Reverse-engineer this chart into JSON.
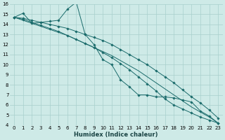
{
  "title": "",
  "xlabel": "Humidex (Indice chaleur)",
  "ylabel": "",
  "bg_color": "#ceeae7",
  "grid_color": "#a8d0cc",
  "line_color": "#1a6b6b",
  "x_data": [
    0,
    1,
    2,
    3,
    4,
    5,
    6,
    7,
    8,
    9,
    10,
    11,
    12,
    13,
    14,
    15,
    16,
    17,
    18,
    19,
    20,
    21,
    22,
    23
  ],
  "y_main": [
    14.7,
    15.1,
    14.1,
    14.2,
    14.3,
    14.4,
    15.5,
    16.2,
    13.0,
    12.0,
    10.5,
    10.0,
    8.5,
    7.8,
    7.0,
    7.0,
    6.8,
    6.8,
    6.7,
    6.5,
    6.3,
    5.4,
    4.9,
    4.2
  ],
  "y_upper": [
    14.7,
    14.6,
    14.4,
    14.2,
    14.0,
    13.8,
    13.6,
    13.3,
    13.0,
    12.7,
    12.4,
    12.0,
    11.5,
    11.0,
    10.5,
    10.0,
    9.4,
    8.8,
    8.2,
    7.5,
    6.8,
    6.2,
    5.5,
    4.7
  ],
  "y_lower": [
    14.7,
    14.5,
    14.2,
    13.9,
    13.6,
    13.3,
    12.9,
    12.5,
    12.1,
    11.7,
    11.2,
    10.7,
    10.1,
    9.5,
    8.8,
    8.1,
    7.4,
    6.6,
    6.0,
    5.6,
    5.2,
    4.8,
    4.5,
    4.2
  ],
  "y_trend": [
    14.7,
    14.4,
    14.1,
    13.8,
    13.5,
    13.2,
    12.9,
    12.5,
    12.1,
    11.7,
    11.3,
    10.9,
    10.4,
    9.9,
    9.4,
    8.8,
    8.2,
    7.6,
    7.0,
    6.4,
    5.8,
    5.3,
    4.8,
    4.2
  ],
  "xlim": [
    -0.5,
    23.5
  ],
  "ylim": [
    4,
    16
  ],
  "yticks": [
    4,
    5,
    6,
    7,
    8,
    9,
    10,
    11,
    12,
    13,
    14,
    15,
    16
  ],
  "xticks": [
    0,
    1,
    2,
    3,
    4,
    5,
    6,
    7,
    8,
    9,
    10,
    11,
    12,
    13,
    14,
    15,
    16,
    17,
    18,
    19,
    20,
    21,
    22,
    23
  ],
  "tick_fontsize": 5.0,
  "xlabel_fontsize": 6.0,
  "lw": 0.7,
  "ms": 1.8
}
